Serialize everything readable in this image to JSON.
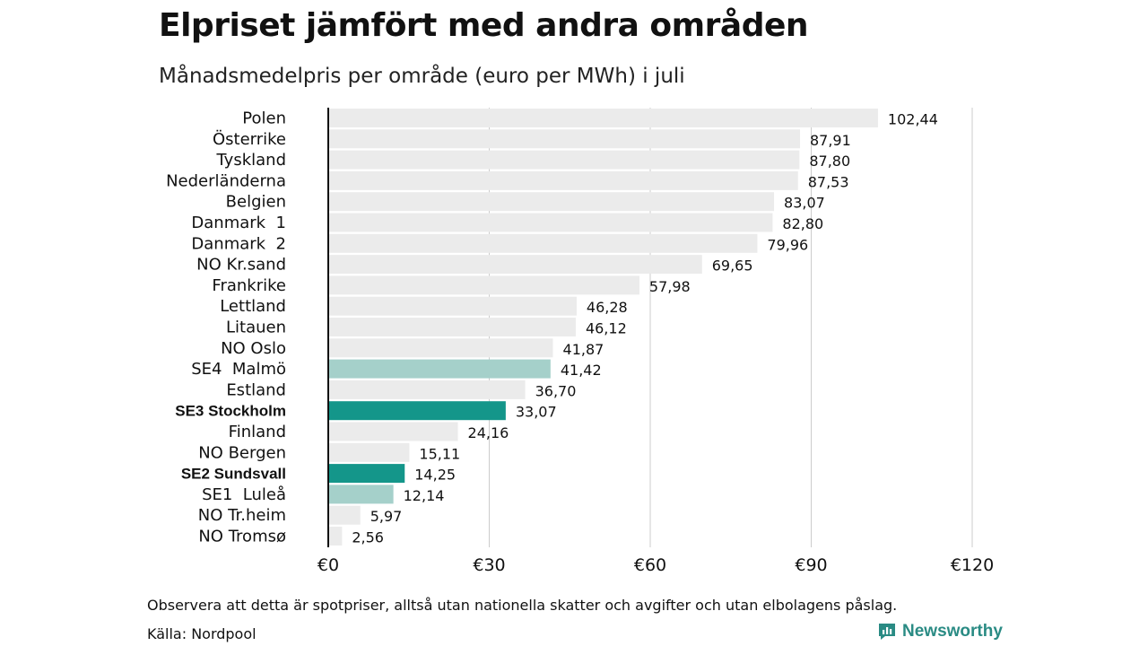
{
  "title": "Elpriset jämfört med andra områden",
  "subtitle": "Månadsmedelpris per område (euro per MWh) i juli",
  "note": "Observera att detta är spotpriser, alltså utan nationella skatter och avgifter och utan elbolagens påslag.",
  "source": "Källa: Nordpool",
  "brand": {
    "name": "Newsworthy",
    "icon": "bar-chart-logo-icon"
  },
  "colors": {
    "default_bar": "#ebebeb",
    "highlight_bar": "#14968a",
    "secondary_bar": "#a5d0ca",
    "grid": "#cccccc",
    "axis": "#111111",
    "brand": "#2a8b84"
  },
  "chart_data": {
    "type": "bar",
    "orientation": "horizontal",
    "xlim": [
      0,
      120
    ],
    "xticks": [
      0,
      30,
      60,
      90,
      120
    ],
    "xtick_labels": [
      "€0",
      "€30",
      "€60",
      "€90",
      "€120"
    ],
    "grid": true,
    "categories": [
      "Polen",
      "Österrike",
      "Tyskland",
      "Nederländerna",
      "Belgien",
      "Danmark  1",
      "Danmark  2",
      "NO Kr.sand",
      "Frankrike",
      "Lettland",
      "Litauen",
      "NO Oslo",
      "SE4  Malmö",
      "Estland",
      "SE3 Stockholm",
      "Finland",
      "NO Bergen",
      "SE2 Sundsvall",
      "SE1  Luleå",
      "NO Tr.heim",
      "NO Tromsø"
    ],
    "values": [
      102.44,
      87.91,
      87.8,
      87.53,
      83.07,
      82.8,
      79.96,
      69.65,
      57.98,
      46.28,
      46.12,
      41.87,
      41.42,
      36.7,
      33.07,
      24.16,
      15.11,
      14.25,
      12.14,
      5.97,
      2.56
    ],
    "value_labels": [
      "102,44",
      "87,91",
      "87,80",
      "87,53",
      "83,07",
      "82,80",
      "79,96",
      "69,65",
      "57,98",
      "46,28",
      "46,12",
      "41,87",
      "41,42",
      "36,70",
      "33,07",
      "24,16",
      "15,11",
      "14,25",
      "12,14",
      "5,97",
      "2,56"
    ],
    "highlight": [
      "default",
      "default",
      "default",
      "default",
      "default",
      "default",
      "default",
      "default",
      "default",
      "default",
      "default",
      "default",
      "secondary",
      "default",
      "primary",
      "default",
      "default",
      "primary",
      "secondary",
      "default",
      "default"
    ]
  }
}
